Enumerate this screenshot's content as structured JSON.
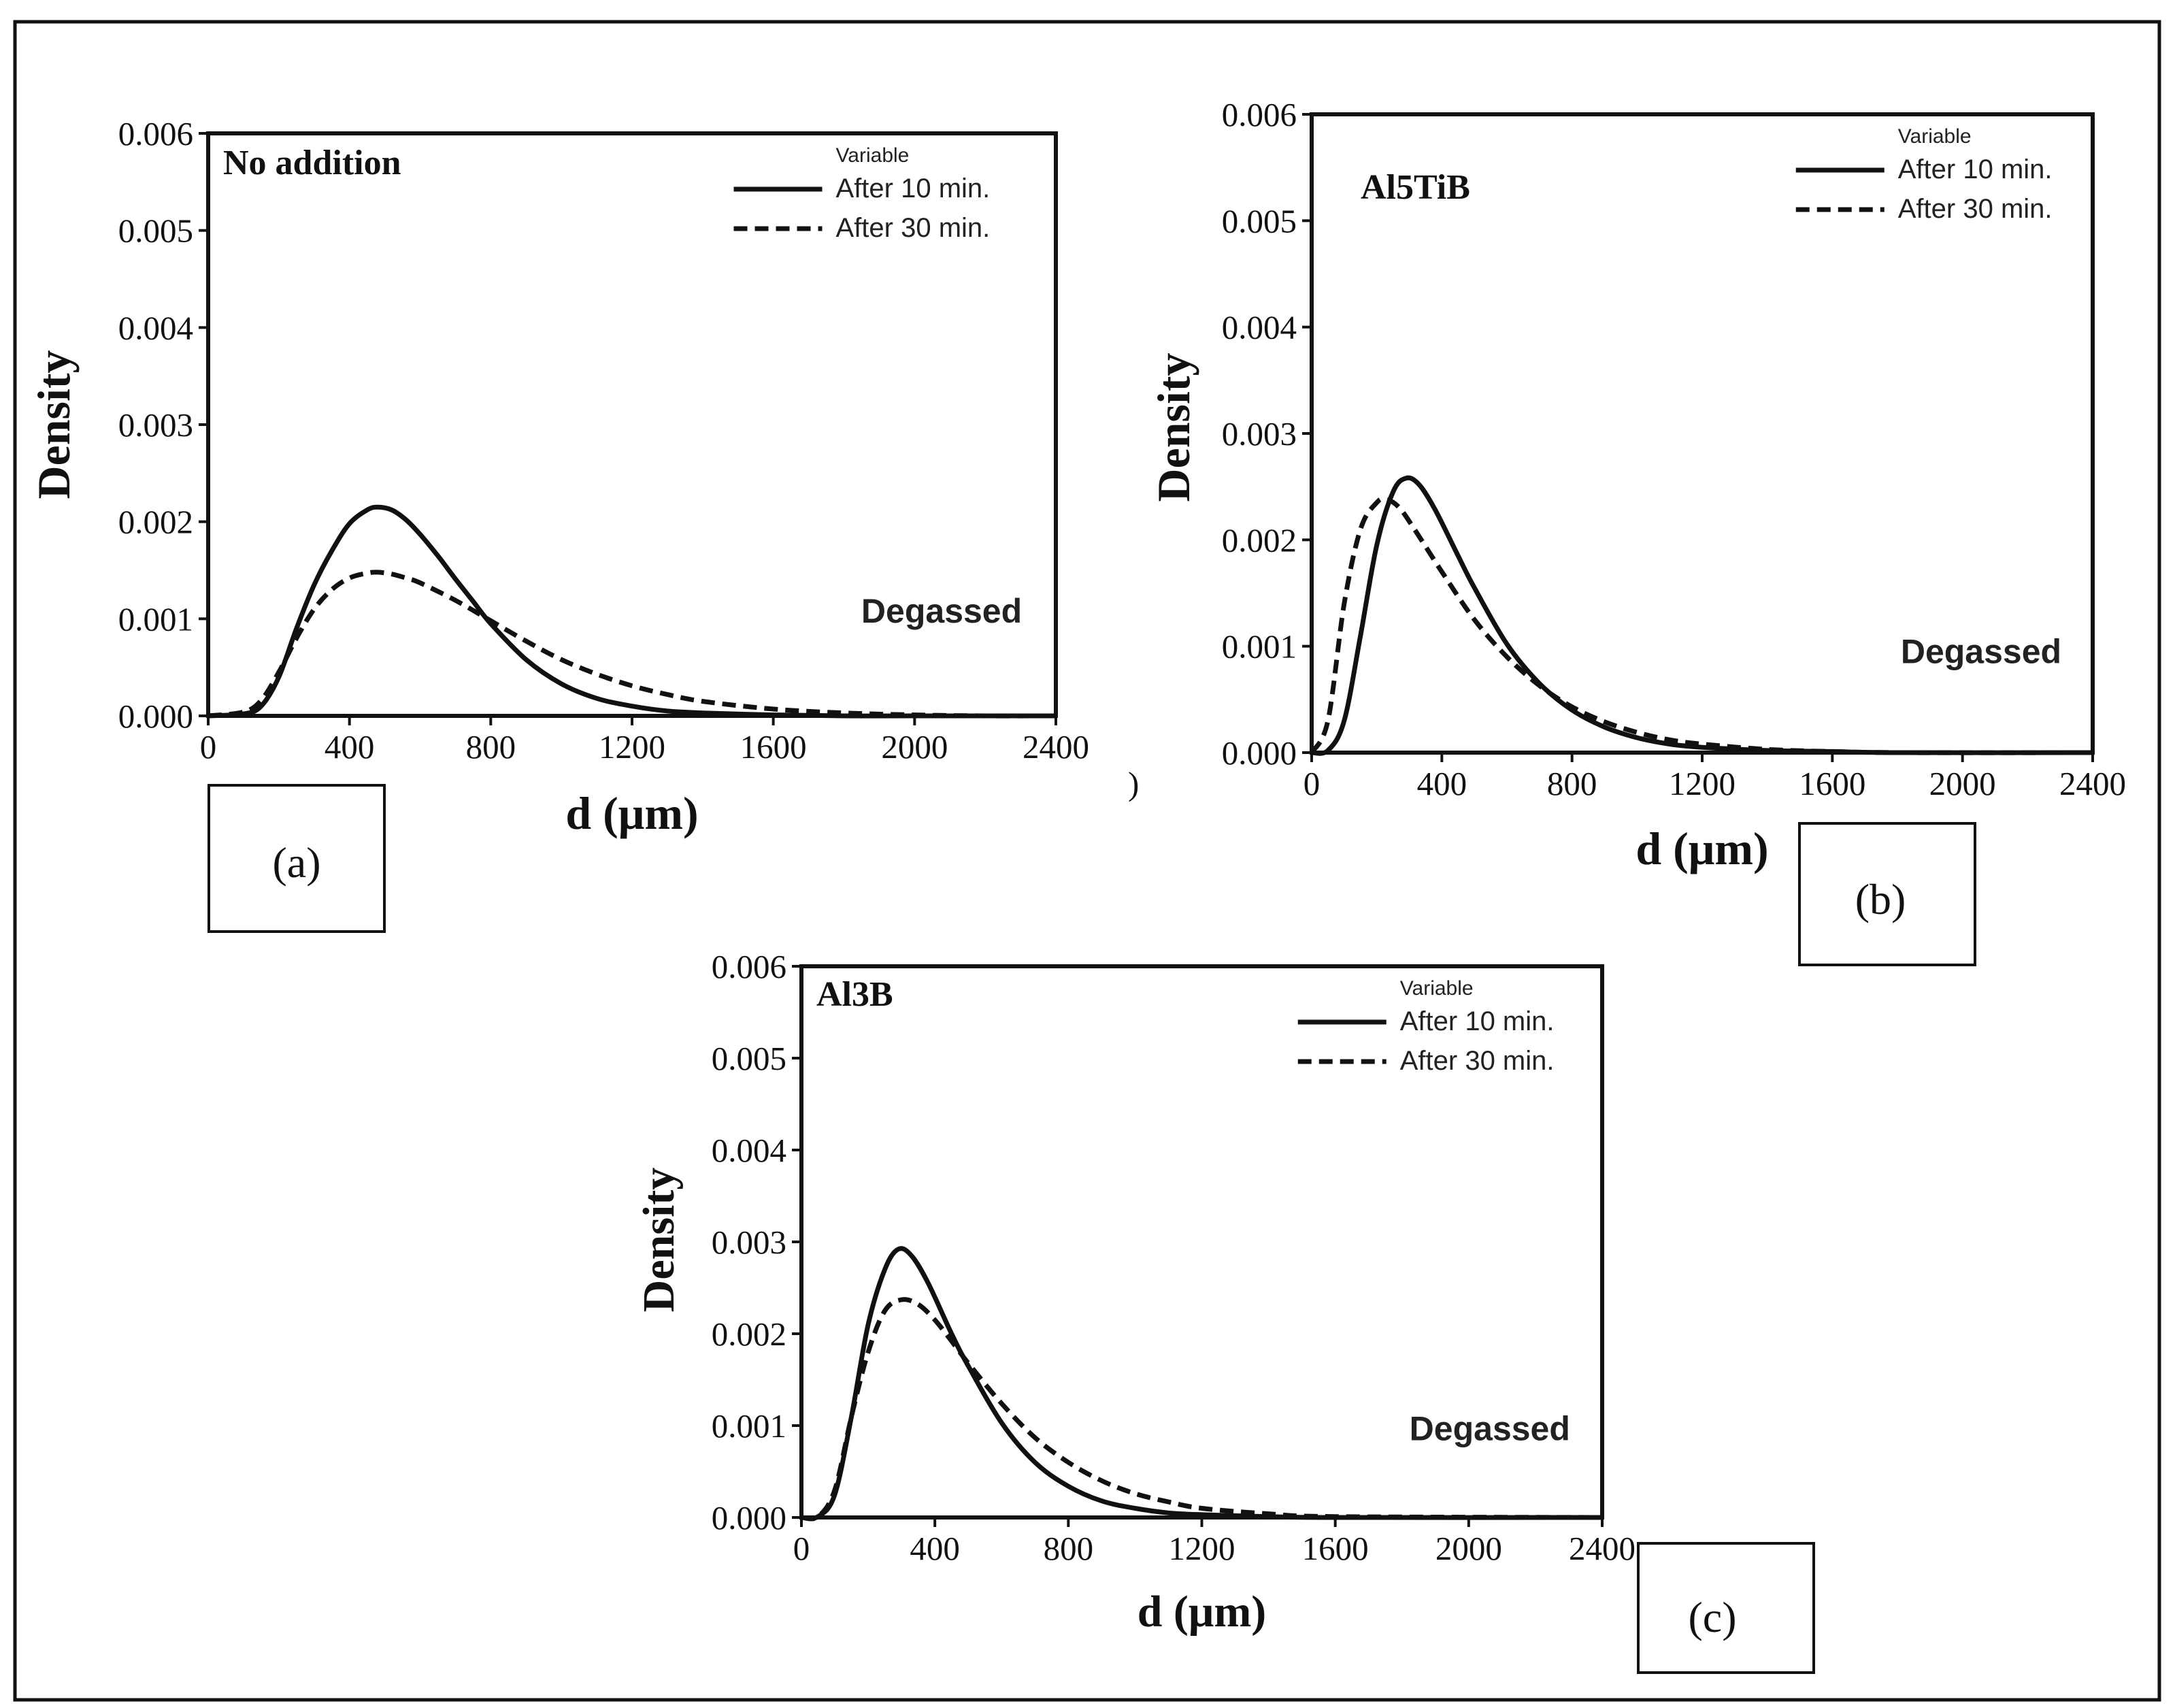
{
  "chart_data": [
    {
      "type": "line",
      "panel": "(a)",
      "title": "No addition",
      "xlabel": "d (μm)",
      "ylabel": "Density",
      "xlim": [
        0,
        2400
      ],
      "ylim": [
        0,
        0.006
      ],
      "xticks": [
        "0",
        "400",
        "800",
        "1200",
        "1600",
        "2000",
        "2400"
      ],
      "yticks": [
        "0.000",
        "0.001",
        "0.002",
        "0.003",
        "0.004",
        "0.005",
        "0.006"
      ],
      "legend_title": "Variable",
      "annotation": "Degassed",
      "series": [
        {
          "name": "After 10 min.",
          "style": "solid",
          "x": [
            0,
            100,
            150,
            200,
            250,
            300,
            350,
            400,
            450,
            480,
            520,
            560,
            600,
            650,
            700,
            750,
            800,
            900,
            1000,
            1100,
            1200,
            1300,
            1400,
            1600,
            1800,
            2000,
            2400
          ],
          "y": [
            0,
            2e-05,
            0.0001,
            0.0004,
            0.0009,
            0.00135,
            0.0017,
            0.00198,
            0.00212,
            0.00215,
            0.00212,
            0.00202,
            0.00187,
            0.00165,
            0.00141,
            0.00118,
            0.00095,
            0.00058,
            0.00033,
            0.00018,
            0.0001,
            5e-05,
            3e-05,
            1e-05,
            0,
            0,
            0
          ]
        },
        {
          "name": "After 30 min.",
          "style": "dashed",
          "x": [
            0,
            100,
            150,
            200,
            250,
            300,
            350,
            400,
            450,
            480,
            520,
            560,
            600,
            700,
            800,
            900,
            1000,
            1100,
            1200,
            1300,
            1400,
            1600,
            1800,
            2000,
            2200,
            2400
          ],
          "y": [
            0,
            4e-05,
            0.00016,
            0.00045,
            0.0008,
            0.0011,
            0.0013,
            0.00142,
            0.00147,
            0.00148,
            0.00146,
            0.00142,
            0.00137,
            0.00119,
            0.00098,
            0.00077,
            0.00058,
            0.00043,
            0.00031,
            0.00022,
            0.00015,
            7e-05,
            3e-05,
            1e-05,
            0,
            0
          ]
        }
      ]
    },
    {
      "type": "line",
      "panel": "(b)",
      "title": "Al5TiB",
      "xlabel": "d (μm)",
      "ylabel": "Density",
      "xlim": [
        0,
        2400
      ],
      "ylim": [
        0,
        0.006
      ],
      "xticks": [
        "0",
        "400",
        "800",
        "1200",
        "1600",
        "2000",
        "2400"
      ],
      "yticks": [
        "0.000",
        "0.001",
        "0.002",
        "0.003",
        "0.004",
        "0.005",
        "0.006"
      ],
      "legend_title": "Variable",
      "annotation": "Degassed",
      "series": [
        {
          "name": "After 10 min.",
          "style": "solid",
          "x": [
            0,
            50,
            100,
            150,
            200,
            250,
            290,
            330,
            380,
            450,
            500,
            600,
            700,
            800,
            900,
            1000,
            1100,
            1200,
            1400,
            1600,
            1800,
            2400
          ],
          "y": [
            0,
            2e-05,
            0.0003,
            0.0011,
            0.00195,
            0.00245,
            0.00258,
            0.00252,
            0.00228,
            0.00185,
            0.00155,
            0.00102,
            0.00065,
            0.0004,
            0.00024,
            0.00014,
            8e-05,
            5e-05,
            2e-05,
            1e-05,
            0,
            0
          ]
        },
        {
          "name": "After 30 min.",
          "style": "dashed",
          "x": [
            0,
            50,
            100,
            150,
            200,
            230,
            270,
            320,
            400,
            500,
            600,
            700,
            800,
            900,
            1000,
            1100,
            1200,
            1400,
            1600,
            1800,
            2400
          ],
          "y": [
            0,
            0.0003,
            0.0014,
            0.0021,
            0.00235,
            0.00238,
            0.0023,
            0.00208,
            0.0017,
            0.00125,
            0.0009,
            0.00063,
            0.00043,
            0.00029,
            0.00019,
            0.00012,
            8e-05,
            3e-05,
            1e-05,
            0,
            0
          ]
        }
      ]
    },
    {
      "type": "line",
      "panel": "(c)",
      "title": "Al3B",
      "xlabel": "d (μm)",
      "ylabel": "Density",
      "xlim": [
        0,
        2400
      ],
      "ylim": [
        0,
        0.006
      ],
      "xticks": [
        "0",
        "400",
        "800",
        "1200",
        "1600",
        "2000",
        "2400"
      ],
      "yticks": [
        "0.000",
        "0.001",
        "0.002",
        "0.003",
        "0.004",
        "0.005",
        "0.006"
      ],
      "legend_title": "Variable",
      "annotation": "Degassed",
      "series": [
        {
          "name": "After 10 min.",
          "style": "solid",
          "x": [
            0,
            50,
            100,
            150,
            200,
            250,
            290,
            330,
            380,
            450,
            500,
            600,
            700,
            800,
            900,
            1000,
            1100,
            1200,
            1400,
            1600,
            2400
          ],
          "y": [
            0,
            1e-05,
            0.00025,
            0.0011,
            0.0021,
            0.0027,
            0.00292,
            0.00285,
            0.00255,
            0.002,
            0.00165,
            0.00103,
            0.0006,
            0.00034,
            0.00018,
            0.0001,
            5e-05,
            3e-05,
            1e-05,
            0,
            0
          ]
        },
        {
          "name": "After 30 min.",
          "style": "dashed",
          "x": [
            0,
            50,
            100,
            150,
            200,
            250,
            300,
            350,
            400,
            450,
            500,
            600,
            700,
            800,
            900,
            1000,
            1100,
            1200,
            1400,
            1600,
            2400
          ],
          "y": [
            0,
            1e-05,
            0.0003,
            0.0011,
            0.0018,
            0.00225,
            0.00237,
            0.00232,
            0.00215,
            0.00192,
            0.00168,
            0.00124,
            0.00087,
            0.0006,
            0.0004,
            0.00026,
            0.00017,
            0.0001,
            4e-05,
            1e-05,
            0
          ]
        }
      ]
    }
  ],
  "panel_labels": [
    "(a)",
    "(b)",
    "(c)"
  ],
  "stray_mark": ")"
}
